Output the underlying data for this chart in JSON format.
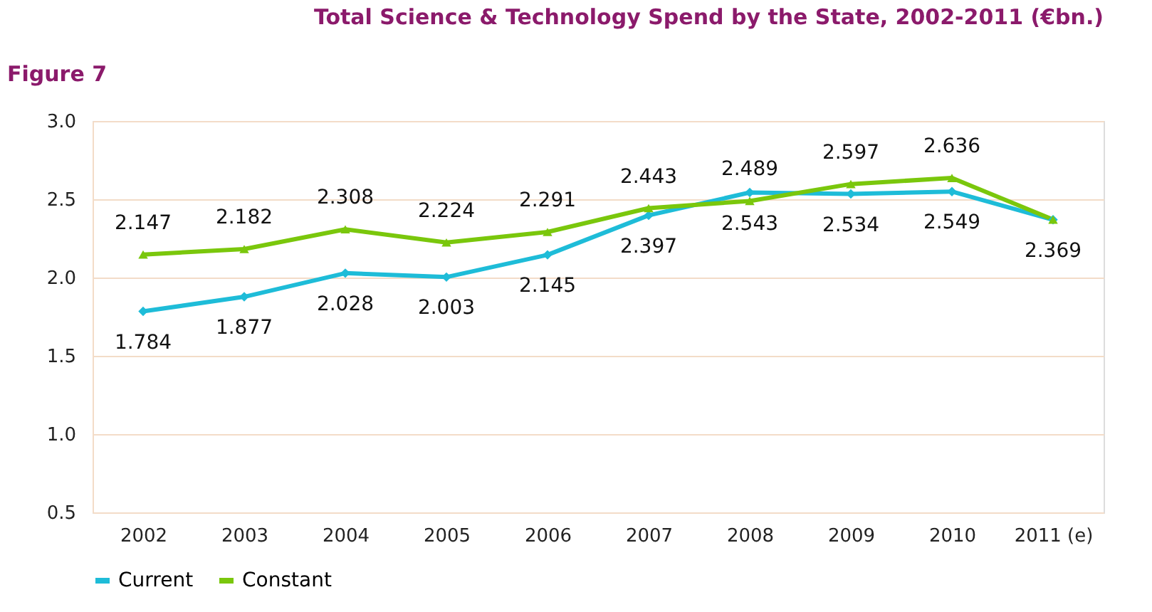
{
  "chart_data": {
    "type": "line",
    "title": "Total Science & Technology Spend by the State, 2002-2011 (€bn.)",
    "annotations": [
      "Figure 7"
    ],
    "categories": [
      "2002",
      "2003",
      "2004",
      "2005",
      "2006",
      "2007",
      "2008",
      "2009",
      "2010",
      "2011 (e)"
    ],
    "series": [
      {
        "name": "Current",
        "color": "#1ebcd8",
        "marker": "diamond",
        "values": [
          1.784,
          1.877,
          2.028,
          2.003,
          2.145,
          2.397,
          2.543,
          2.534,
          2.549,
          2.369
        ],
        "value_labels": [
          "1.784",
          "1.877",
          "2.028",
          "2.003",
          "2.145",
          "2.397",
          "2.543",
          "2.534",
          "2.549",
          "2.369"
        ]
      },
      {
        "name": "Constant",
        "color": "#7ac70c",
        "marker": "triangle",
        "values": [
          2.147,
          2.182,
          2.308,
          2.224,
          2.291,
          2.443,
          2.489,
          2.597,
          2.636,
          2.37
        ],
        "value_labels": [
          "2.147",
          "2.182",
          "2.308",
          "2.224",
          "2.291",
          "2.443",
          "2.489",
          "2.597",
          "2.636",
          null
        ]
      }
    ],
    "ylim": [
      0.5,
      3.0
    ],
    "yticks": [
      0.5,
      {
        "value": 1,
        "label": "1.0"
      },
      1.5,
      {
        "value": 2,
        "label": "2.0"
      },
      2.5,
      {
        "value": 3,
        "label": "3.0"
      }
    ],
    "grid": "y",
    "legend": "bottom",
    "line_style": "solid"
  }
}
